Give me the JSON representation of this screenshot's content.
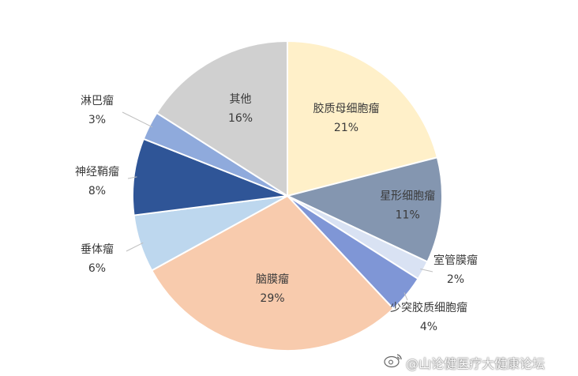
{
  "chart_data": {
    "type": "pie",
    "title": "",
    "slices": [
      {
        "label": "胶质母细胞瘤",
        "value": 21,
        "display": "21%",
        "color": "#FFF0C9"
      },
      {
        "label": "星形细胞瘤",
        "value": 11,
        "display": "11%",
        "color": "#8496B0"
      },
      {
        "label": "室管膜瘤",
        "value": 2,
        "display": "2%",
        "color": "#D9E2F3"
      },
      {
        "label": "少突胶质细胞瘤",
        "value": 4,
        "display": "4%",
        "color": "#7F96D6"
      },
      {
        "label": "脑膜瘤",
        "value": 29,
        "display": "29%",
        "color": "#F8CBAD"
      },
      {
        "label": "垂体瘤",
        "value": 6,
        "display": "6%",
        "color": "#BDD7EE"
      },
      {
        "label": "神经鞘瘤",
        "value": 8,
        "display": "8%",
        "color": "#2F5597"
      },
      {
        "label": "淋巴瘤",
        "value": 3,
        "display": "3%",
        "color": "#8FAADC"
      },
      {
        "label": "其他",
        "value": 16,
        "display": "16%",
        "color": "#D0D0D0"
      }
    ],
    "start_angle": "12 o'clock",
    "direction": "clockwise",
    "legend": "none"
  },
  "watermark": {
    "text": "@山论健医疗大健康论坛"
  }
}
